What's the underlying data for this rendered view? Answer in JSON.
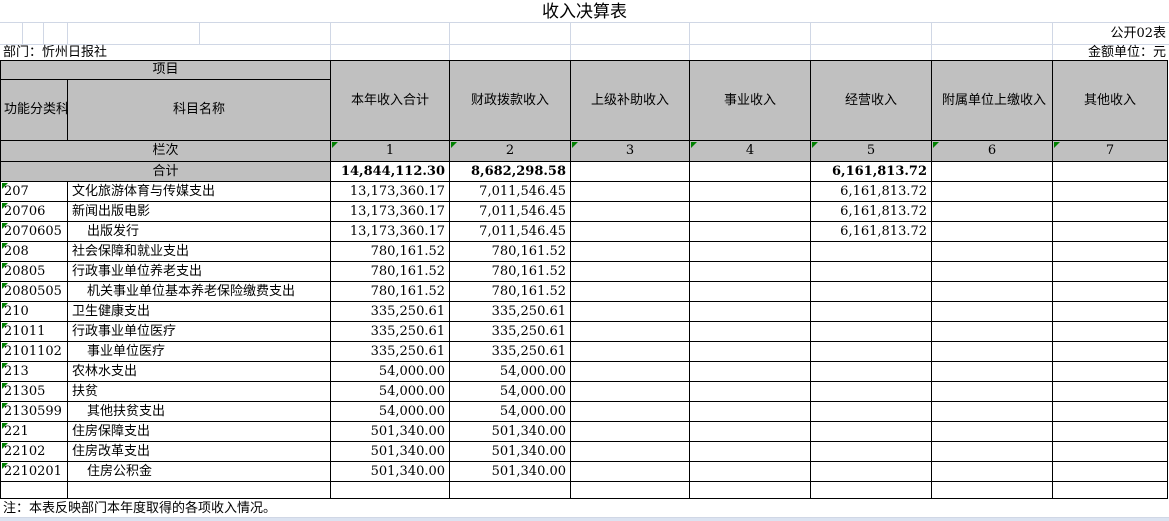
{
  "title": "收入决算表",
  "meta": {
    "sheet_label": "公开02表",
    "department": "部门：忻州日报社",
    "unit": "金额单位：元"
  },
  "table": {
    "project_header": "项目",
    "code_header": "功能分类科目编码",
    "name_header": "科目名称",
    "columns": [
      "本年收入合计",
      "财政拨款收入",
      "上级补助收入",
      "事业收入",
      "经营收入",
      "附属单位上缴收入",
      "其他收入"
    ],
    "lanci_label": "栏次",
    "column_numbers": [
      "1",
      "2",
      "3",
      "4",
      "5",
      "6",
      "7"
    ],
    "total_label": "合计",
    "total_values": [
      "14,844,112.30",
      "8,682,298.58",
      "",
      "",
      "6,161,813.72",
      "",
      ""
    ],
    "rows": [
      {
        "code": "207",
        "name": "文化旅游体育与传媒支出",
        "indent": false,
        "values": [
          "13,173,360.17",
          "7,011,546.45",
          "",
          "",
          "6,161,813.72",
          "",
          ""
        ]
      },
      {
        "code": "20706",
        "name": "新闻出版电影",
        "indent": false,
        "values": [
          "13,173,360.17",
          "7,011,546.45",
          "",
          "",
          "6,161,813.72",
          "",
          ""
        ]
      },
      {
        "code": "2070605",
        "name": "出版发行",
        "indent": true,
        "values": [
          "13,173,360.17",
          "7,011,546.45",
          "",
          "",
          "6,161,813.72",
          "",
          ""
        ]
      },
      {
        "code": "208",
        "name": "社会保障和就业支出",
        "indent": false,
        "values": [
          "780,161.52",
          "780,161.52",
          "",
          "",
          "",
          "",
          ""
        ]
      },
      {
        "code": "20805",
        "name": "行政事业单位养老支出",
        "indent": false,
        "values": [
          "780,161.52",
          "780,161.52",
          "",
          "",
          "",
          "",
          ""
        ]
      },
      {
        "code": "2080505",
        "name": "机关事业单位基本养老保险缴费支出",
        "indent": true,
        "values": [
          "780,161.52",
          "780,161.52",
          "",
          "",
          "",
          "",
          ""
        ]
      },
      {
        "code": "210",
        "name": "卫生健康支出",
        "indent": false,
        "values": [
          "335,250.61",
          "335,250.61",
          "",
          "",
          "",
          "",
          ""
        ]
      },
      {
        "code": "21011",
        "name": "行政事业单位医疗",
        "indent": false,
        "values": [
          "335,250.61",
          "335,250.61",
          "",
          "",
          "",
          "",
          ""
        ]
      },
      {
        "code": "2101102",
        "name": "事业单位医疗",
        "indent": true,
        "values": [
          "335,250.61",
          "335,250.61",
          "",
          "",
          "",
          "",
          ""
        ]
      },
      {
        "code": "213",
        "name": "农林水支出",
        "indent": false,
        "values": [
          "54,000.00",
          "54,000.00",
          "",
          "",
          "",
          "",
          ""
        ]
      },
      {
        "code": "21305",
        "name": "扶贫",
        "indent": false,
        "values": [
          "54,000.00",
          "54,000.00",
          "",
          "",
          "",
          "",
          ""
        ]
      },
      {
        "code": "2130599",
        "name": "其他扶贫支出",
        "indent": true,
        "values": [
          "54,000.00",
          "54,000.00",
          "",
          "",
          "",
          "",
          ""
        ]
      },
      {
        "code": "221",
        "name": "住房保障支出",
        "indent": false,
        "values": [
          "501,340.00",
          "501,340.00",
          "",
          "",
          "",
          "",
          ""
        ]
      },
      {
        "code": "22102",
        "name": "住房改革支出",
        "indent": false,
        "values": [
          "501,340.00",
          "501,340.00",
          "",
          "",
          "",
          "",
          ""
        ]
      },
      {
        "code": "2210201",
        "name": "住房公积金",
        "indent": true,
        "values": [
          "501,340.00",
          "501,340.00",
          "",
          "",
          "",
          "",
          ""
        ]
      }
    ],
    "note": "注：本表反映部门本年度取得的各项收入情况。"
  },
  "colors": {
    "header_fill": "#c0c0c0",
    "gridline_faint": "#d0d7e5",
    "error_indicator_green": "#008000",
    "table_border": "#000000"
  }
}
